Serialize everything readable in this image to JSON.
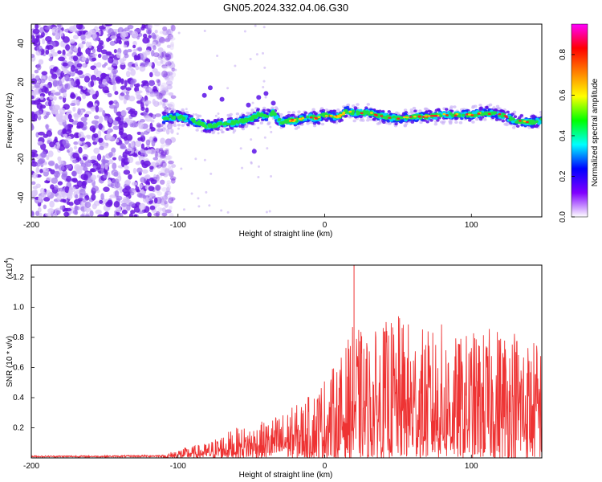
{
  "title": "GN05.2024.332.04.06.G30",
  "chart_data": [
    {
      "type": "heatmap",
      "name": "spectrogram",
      "xlabel": "Height of straight line (km)",
      "ylabel": "Frequency (Hz)",
      "xlim": [
        -200,
        148
      ],
      "ylim": [
        -50,
        50
      ],
      "xticks": [
        -200,
        -100,
        0,
        100
      ],
      "yticks": [
        -40,
        -20,
        0,
        20,
        40
      ],
      "colorbar": {
        "label": "Normalized spectral amplitude",
        "range": [
          0,
          0.95
        ],
        "ticks": [
          "0.0",
          "0.2",
          "0.4",
          "0.6",
          "0.8"
        ],
        "colors": [
          "#ffffff",
          "#8000ff",
          "#0000ff",
          "#00ffff",
          "#00ff00",
          "#ffff00",
          "#ff8000",
          "#ff0000",
          "#ff00ff"
        ]
      },
      "noise_region": [
        -200,
        -107
      ],
      "signal_ridge": {
        "x": [
          -110,
          -100,
          -90,
          -80,
          -70,
          -60,
          -50,
          -45,
          -40,
          -35,
          -30,
          -25,
          -20,
          -15,
          -10,
          -5,
          0,
          5,
          10,
          15,
          20,
          30,
          40,
          50,
          60,
          70,
          80,
          90,
          100,
          110,
          120,
          130,
          140,
          148
        ],
        "freq": [
          1,
          2,
          0,
          -3,
          -2,
          -1,
          1,
          3,
          2,
          4,
          -1,
          0,
          0,
          1,
          2,
          1,
          3,
          2,
          2,
          5,
          4,
          4,
          2,
          1,
          2,
          2,
          3,
          3,
          3,
          4,
          3,
          0,
          -1,
          0
        ]
      }
    },
    {
      "type": "line",
      "name": "snr",
      "xlabel": "Height of straight line (km)",
      "ylabel": "SNR (10 * v/v)",
      "yscale_label": "(x10",
      "yscale_exp": "4",
      "xlim": [
        -200,
        148
      ],
      "ylim": [
        0,
        1.28
      ],
      "xticks": [
        -200,
        -100,
        0,
        100
      ],
      "yticks": [
        0.2,
        0.4,
        0.6,
        0.8,
        1.0,
        1.2
      ],
      "color": "#ee3333",
      "envelope": {
        "x": [
          -200,
          -150,
          -110,
          -100,
          -90,
          -80,
          -70,
          -60,
          -50,
          -40,
          -30,
          -20,
          -10,
          0,
          10,
          20,
          30,
          40,
          50,
          60,
          70,
          80,
          90,
          100,
          110,
          120,
          130,
          140,
          148
        ],
        "y": [
          0.015,
          0.015,
          0.02,
          0.06,
          0.08,
          0.1,
          0.16,
          0.2,
          0.22,
          0.25,
          0.3,
          0.35,
          0.42,
          0.55,
          0.65,
          0.9,
          0.8,
          0.9,
          0.95,
          0.9,
          0.85,
          0.9,
          0.8,
          0.85,
          0.85,
          0.9,
          0.9,
          0.8,
          0.8
        ]
      },
      "peak": {
        "x": 20,
        "y": 1.28
      }
    }
  ]
}
